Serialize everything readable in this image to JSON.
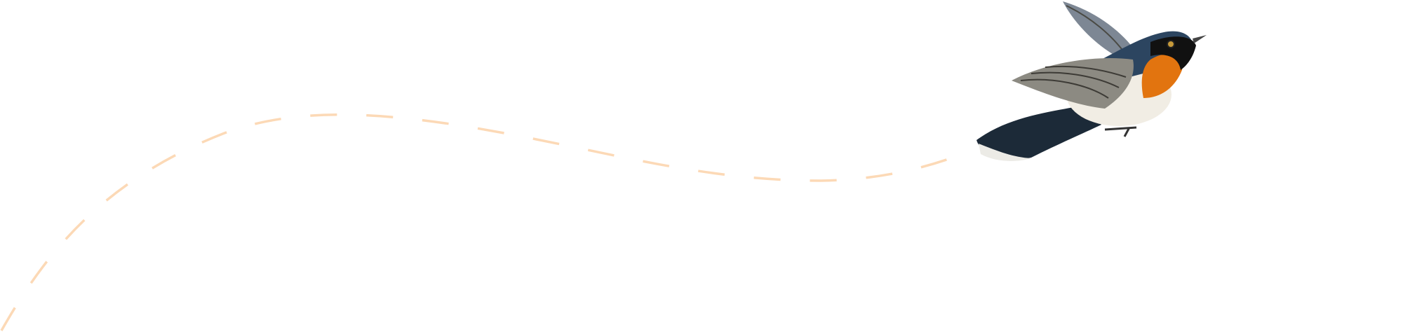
{
  "illustration": {
    "subject": "bird-in-flight",
    "path_style": "dashed",
    "colors": {
      "background": "#ffffff",
      "flight_path": "#fcd9b6",
      "bird_back": "#1f3347",
      "bird_throat": "#e2740f",
      "bird_wing": "#8c8a82",
      "bird_belly": "#f1ede4"
    }
  }
}
